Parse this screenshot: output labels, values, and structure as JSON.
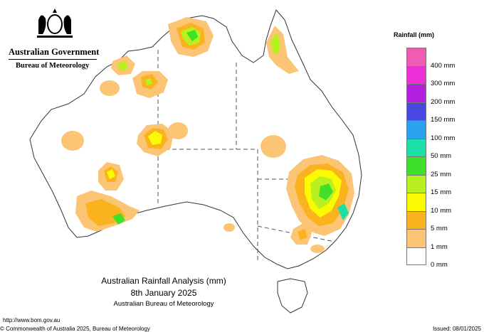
{
  "header": {
    "government": "Australian Government",
    "bureau": "Bureau of Meteorology"
  },
  "legend": {
    "title": "Rainfall (mm)",
    "items": [
      {
        "label": "",
        "color": "#f05cb4"
      },
      {
        "label": "400 mm",
        "color": "#ee2fd8"
      },
      {
        "label": "300 mm",
        "color": "#b51fe0"
      },
      {
        "label": "200 mm",
        "color": "#4848e0"
      },
      {
        "label": "150 mm",
        "color": "#2aa2f0"
      },
      {
        "label": "100 mm",
        "color": "#1ce0a8"
      },
      {
        "label": "50 mm",
        "color": "#3fe02a"
      },
      {
        "label": "25 mm",
        "color": "#b8f020"
      },
      {
        "label": "15 mm",
        "color": "#fafa05"
      },
      {
        "label": "10 mm",
        "color": "#fab31f"
      },
      {
        "label": "5 mm",
        "color": "#fbc575"
      },
      {
        "label": "1 mm",
        "color": "#ffffff"
      },
      {
        "label": "0 mm",
        "color": ""
      }
    ]
  },
  "title_block": {
    "line1": "Australian Rainfall Analysis (mm)",
    "line2": "8th January 2025",
    "line3": "Australian Bureau of Meteorology"
  },
  "footer": {
    "url": "http://www.bom.gov.au",
    "copyright": "© Commonwealth of Australia 2025, Bureau of Meteorology",
    "issued": "Issued: 08/01/2025"
  }
}
